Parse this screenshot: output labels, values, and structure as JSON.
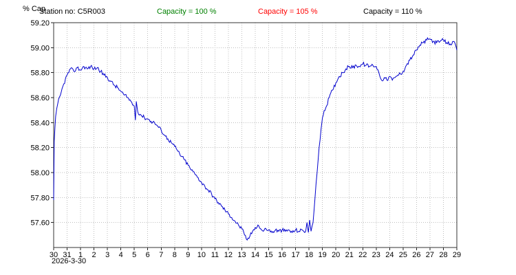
{
  "header": {
    "station_label": "Station no: C5R003",
    "capacity_labels": [
      {
        "label": "Capacity = 100 %",
        "color": "#008000"
      },
      {
        "label": "Capacity = 105 %",
        "color": "#ff0000"
      },
      {
        "label": "Capacity = 110 %",
        "color": "#000000"
      }
    ]
  },
  "footer": {
    "start_date": "2026-3-30"
  },
  "chart_data": {
    "type": "line",
    "title": "",
    "ylabel": "% Cap",
    "xlabel": "",
    "legend_position": "none",
    "grid": true,
    "series": [
      {
        "name": "capacity-percent",
        "color": "#0000cd"
      }
    ],
    "x_tick_labels": [
      "30",
      "31",
      "1",
      "2",
      "3",
      "4",
      "5",
      "6",
      "7",
      "8",
      "9",
      "10",
      "11",
      "12",
      "13",
      "14",
      "15",
      "16",
      "17",
      "18",
      "19",
      "20",
      "21",
      "22",
      "23",
      "24",
      "25",
      "26",
      "27",
      "28",
      "29"
    ],
    "y_ticks": [
      57.6,
      57.8,
      58.0,
      58.2,
      58.4,
      58.6,
      58.8,
      59.0,
      59.2
    ],
    "xlim": [
      0,
      30
    ],
    "ylim": [
      57.4,
      59.2
    ],
    "noise_amplitude": 0.016,
    "points": [
      [
        0,
        57.78
      ],
      [
        0.04,
        58.25
      ],
      [
        0.15,
        58.45
      ],
      [
        0.3,
        58.55
      ],
      [
        0.5,
        58.62
      ],
      [
        0.75,
        58.71
      ],
      [
        1,
        58.78
      ],
      [
        1.25,
        58.83
      ],
      [
        1.5,
        58.81
      ],
      [
        1.75,
        58.84
      ],
      [
        2,
        58.82
      ],
      [
        2.25,
        58.85
      ],
      [
        2.5,
        58.83
      ],
      [
        2.75,
        58.85
      ],
      [
        3,
        58.83
      ],
      [
        3.25,
        58.84
      ],
      [
        3.5,
        58.81
      ],
      [
        3.75,
        58.78
      ],
      [
        4,
        58.76
      ],
      [
        4.25,
        58.73
      ],
      [
        4.5,
        58.7
      ],
      [
        4.75,
        58.68
      ],
      [
        5,
        58.65
      ],
      [
        5.25,
        58.62
      ],
      [
        5.5,
        58.6
      ],
      [
        5.75,
        58.57
      ],
      [
        6,
        58.53
      ],
      [
        6.08,
        58.42
      ],
      [
        6.15,
        58.57
      ],
      [
        6.25,
        58.49
      ],
      [
        6.5,
        58.46
      ],
      [
        6.75,
        58.44
      ],
      [
        7,
        58.43
      ],
      [
        7.25,
        58.41
      ],
      [
        7.5,
        58.4
      ],
      [
        7.75,
        58.37
      ],
      [
        8,
        58.34
      ],
      [
        8.25,
        58.3
      ],
      [
        8.5,
        58.27
      ],
      [
        8.75,
        58.24
      ],
      [
        9,
        58.21
      ],
      [
        9.25,
        58.17
      ],
      [
        9.5,
        58.13
      ],
      [
        9.75,
        58.1
      ],
      [
        10,
        58.06
      ],
      [
        10.25,
        58.02
      ],
      [
        10.5,
        57.99
      ],
      [
        10.75,
        57.96
      ],
      [
        11,
        57.92
      ],
      [
        11.25,
        57.89
      ],
      [
        11.5,
        57.86
      ],
      [
        11.75,
        57.83
      ],
      [
        12,
        57.79
      ],
      [
        12.25,
        57.76
      ],
      [
        12.5,
        57.73
      ],
      [
        12.75,
        57.7
      ],
      [
        13,
        57.67
      ],
      [
        13.25,
        57.64
      ],
      [
        13.5,
        57.61
      ],
      [
        13.75,
        57.58
      ],
      [
        14,
        57.55
      ],
      [
        14.2,
        57.5
      ],
      [
        14.4,
        57.46
      ],
      [
        14.6,
        57.49
      ],
      [
        14.8,
        57.53
      ],
      [
        15,
        57.56
      ],
      [
        15.2,
        57.58
      ],
      [
        15.4,
        57.55
      ],
      [
        15.6,
        57.53
      ],
      [
        15.8,
        57.55
      ],
      [
        16,
        57.54
      ],
      [
        16.25,
        57.52
      ],
      [
        16.5,
        57.54
      ],
      [
        16.75,
        57.53
      ],
      [
        17,
        57.54
      ],
      [
        17.25,
        57.53
      ],
      [
        17.5,
        57.54
      ],
      [
        17.75,
        57.52
      ],
      [
        18,
        57.54
      ],
      [
        18.25,
        57.53
      ],
      [
        18.5,
        57.54
      ],
      [
        18.75,
        57.53
      ],
      [
        18.85,
        57.6
      ],
      [
        18.95,
        57.52
      ],
      [
        19.05,
        57.62
      ],
      [
        19.15,
        57.53
      ],
      [
        19.3,
        57.6
      ],
      [
        19.45,
        57.8
      ],
      [
        19.6,
        58.0
      ],
      [
        19.75,
        58.2
      ],
      [
        19.9,
        58.35
      ],
      [
        20,
        58.44
      ],
      [
        20.25,
        58.52
      ],
      [
        20.5,
        58.6
      ],
      [
        20.75,
        58.66
      ],
      [
        21,
        58.72
      ],
      [
        21.25,
        58.77
      ],
      [
        21.5,
        58.8
      ],
      [
        21.75,
        58.83
      ],
      [
        22,
        58.85
      ],
      [
        22.25,
        58.84
      ],
      [
        22.5,
        58.86
      ],
      [
        22.75,
        58.85
      ],
      [
        23,
        58.87
      ],
      [
        23.25,
        58.86
      ],
      [
        23.5,
        58.85
      ],
      [
        23.75,
        58.86
      ],
      [
        24,
        58.85
      ],
      [
        24.2,
        58.8
      ],
      [
        24.4,
        58.74
      ],
      [
        24.6,
        58.76
      ],
      [
        24.8,
        58.74
      ],
      [
        25,
        58.77
      ],
      [
        25.2,
        58.74
      ],
      [
        25.4,
        58.76
      ],
      [
        25.6,
        58.78
      ],
      [
        25.8,
        58.79
      ],
      [
        26,
        58.81
      ],
      [
        26.25,
        58.86
      ],
      [
        26.5,
        58.9
      ],
      [
        26.75,
        58.94
      ],
      [
        27,
        58.98
      ],
      [
        27.25,
        59.02
      ],
      [
        27.5,
        59.04
      ],
      [
        27.75,
        59.06
      ],
      [
        28,
        59.07
      ],
      [
        28.25,
        59.05
      ],
      [
        28.5,
        59.04
      ],
      [
        28.75,
        59.05
      ],
      [
        29,
        59.06
      ],
      [
        29.25,
        59.04
      ],
      [
        29.5,
        59.03
      ],
      [
        29.75,
        59.05
      ],
      [
        30,
        58.98
      ]
    ]
  }
}
